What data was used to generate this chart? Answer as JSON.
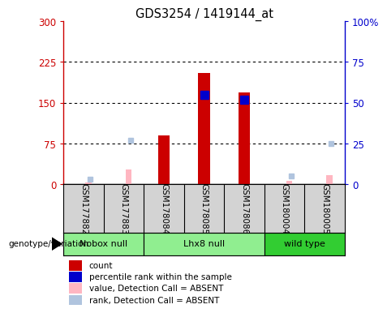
{
  "title": "GDS3254 / 1419144_at",
  "samples": [
    "GSM177882",
    "GSM177883",
    "GSM178084",
    "GSM178085",
    "GSM178086",
    "GSM180004",
    "GSM180005"
  ],
  "count_values": [
    0,
    0,
    90,
    205,
    168,
    0,
    0
  ],
  "rank_present_values": [
    0,
    0,
    0,
    55,
    52,
    0,
    0
  ],
  "value_absent": [
    3,
    28,
    0,
    0,
    0,
    7,
    17
  ],
  "rank_absent_values": [
    3,
    27,
    0,
    0,
    0,
    5,
    25
  ],
  "groups": [
    {
      "label": "Nobox null",
      "start": 0,
      "end": 1,
      "color": "#90EE90"
    },
    {
      "label": "Lhx8 null",
      "start": 2,
      "end": 4,
      "color": "#90EE90"
    },
    {
      "label": "wild type",
      "start": 5,
      "end": 6,
      "color": "#32CD32"
    }
  ],
  "ylim_left": [
    0,
    300
  ],
  "ylim_right": [
    0,
    100
  ],
  "yticks_left": [
    0,
    75,
    150,
    225,
    300
  ],
  "ytick_labels_left": [
    "0",
    "75",
    "150",
    "225",
    "300"
  ],
  "yticks_right": [
    0,
    25,
    50,
    75,
    100
  ],
  "ytick_labels_right": [
    "0",
    "25",
    "50",
    "75",
    "100%"
  ],
  "left_axis_color": "#CC0000",
  "right_axis_color": "#0000CC",
  "bar_color_count": "#CC0000",
  "bar_color_rank": "#0000CC",
  "bar_color_value_absent": "#FFB6C1",
  "bar_color_rank_absent": "#B0C4DE",
  "legend_labels": [
    "count",
    "percentile rank within the sample",
    "value, Detection Call = ABSENT",
    "rank, Detection Call = ABSENT"
  ],
  "genotype_label": "genotype/variation"
}
